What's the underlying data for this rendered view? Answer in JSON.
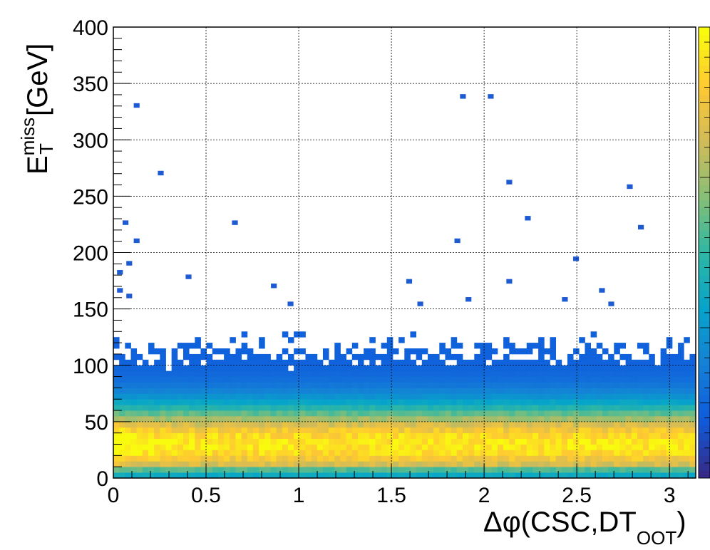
{
  "chart_data": {
    "type": "heatmap",
    "title": "",
    "xlabel": {
      "main": "Δφ(CSC,DT",
      "subscript": "OOT",
      "close": ")"
    },
    "ylabel": {
      "main": "E",
      "superscript": "miss",
      "subscript": "T",
      "unit": "[GeV]"
    },
    "xlim": [
      0,
      3.1416
    ],
    "ylim": [
      0,
      400
    ],
    "bin_width_x": 0.0314,
    "bin_width_y": 5,
    "x_ticks": [
      0,
      0.5,
      1,
      1.5,
      2,
      2.5,
      3
    ],
    "x_tick_labels": [
      "0",
      "0.5",
      "1",
      "1.5",
      "2",
      "2.5",
      "3"
    ],
    "y_ticks": [
      0,
      50,
      100,
      150,
      200,
      250,
      300,
      350,
      400
    ],
    "y_tick_labels": [
      "0",
      "50",
      "100",
      "150",
      "200",
      "250",
      "300",
      "350",
      "400"
    ],
    "grid": true,
    "colormap": "parula",
    "colormap_stops": [
      "#352a87",
      "#0f5cdd",
      "#1481d6",
      "#06a4ca",
      "#2eb7a4",
      "#87bf77",
      "#d1bb59",
      "#fec832",
      "#f9fb0e"
    ],
    "density_description": "counts concentrated at low MET (20-40 GeV), highest near Δφ≈0-0.15, roughly uniform in Δφ, sparse above 100 GeV",
    "isolated_points": [
      [
        0.11,
        330
      ],
      [
        1.87,
        338
      ],
      [
        2.02,
        338
      ],
      [
        0.24,
        270
      ],
      [
        2.12,
        262
      ],
      [
        2.77,
        258
      ],
      [
        0.05,
        226
      ],
      [
        0.64,
        226
      ],
      [
        2.22,
        230
      ],
      [
        2.83,
        222
      ],
      [
        0.11,
        210
      ],
      [
        1.84,
        210
      ],
      [
        2.48,
        194
      ],
      [
        0.07,
        190
      ],
      [
        0.02,
        182
      ],
      [
        0.39,
        178
      ],
      [
        1.58,
        174
      ],
      [
        2.12,
        174
      ],
      [
        0.85,
        170
      ],
      [
        0.02,
        166
      ],
      [
        2.62,
        166
      ],
      [
        0.07,
        161
      ],
      [
        1.9,
        158
      ],
      [
        2.42,
        158
      ],
      [
        0.94,
        154
      ],
      [
        1.64,
        154
      ],
      [
        2.67,
        154
      ]
    ]
  }
}
